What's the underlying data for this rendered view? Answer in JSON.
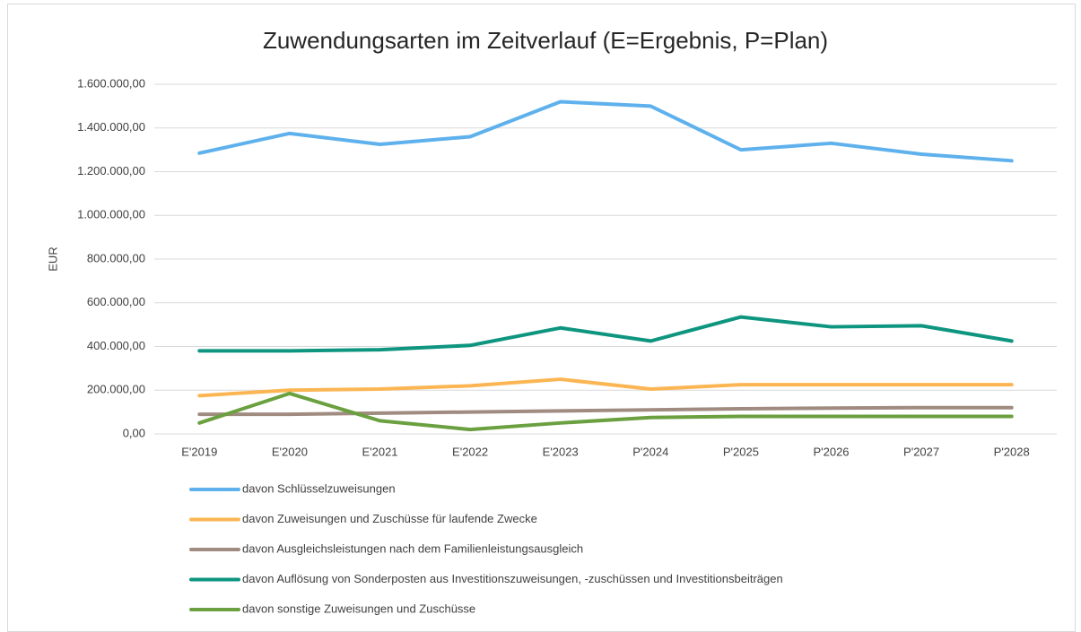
{
  "chart_data": {
    "type": "line",
    "title": "Zuwendungsarten im Zeitverlauf (E=Ergebnis, P=Plan)",
    "y_label": "EUR",
    "categories": [
      "E'2019",
      "E'2020",
      "E'2021",
      "E'2022",
      "E'2023",
      "P'2024",
      "P'2025",
      "P'2026",
      "P'2027",
      "P'2028"
    ],
    "series": [
      {
        "name": "davon Schlüsselzuweisungen",
        "color": "#5eb1ec",
        "values": [
          1285000,
          1375000,
          1325000,
          1360000,
          1520000,
          1500000,
          1300000,
          1330000,
          1280000,
          1250000
        ]
      },
      {
        "name": "davon Zuweisungen und Zuschüsse für laufende Zwecke",
        "color": "#fbb653",
        "values": [
          175000,
          200000,
          205000,
          220000,
          250000,
          205000,
          225000,
          225000,
          225000,
          225000
        ]
      },
      {
        "name": "davon Ausgleichsleistungen nach dem Familienleistungsausgleich",
        "color": "#a08b80",
        "values": [
          90000,
          90000,
          95000,
          100000,
          105000,
          110000,
          115000,
          118000,
          120000,
          120000
        ]
      },
      {
        "name": "davon Auflösung von Sonderposten aus Investitionszuweisungen, -zuschüssen und Investitionsbeiträgen",
        "color": "#0e9580",
        "values": [
          380000,
          380000,
          385000,
          405000,
          485000,
          425000,
          535000,
          490000,
          495000,
          425000
        ]
      },
      {
        "name": "davon sonstige Zuweisungen und Zuschüsse",
        "color": "#6aa03f",
        "values": [
          50000,
          185000,
          60000,
          20000,
          50000,
          75000,
          80000,
          80000,
          80000,
          80000
        ]
      }
    ],
    "ylim": [
      0,
      1600000
    ],
    "yticks": [
      {
        "value": 0,
        "label": "0,00"
      },
      {
        "value": 200000,
        "label": "200.000,00"
      },
      {
        "value": 400000,
        "label": "400.000,00"
      },
      {
        "value": 600000,
        "label": "600.000,00"
      },
      {
        "value": 800000,
        "label": "800.000,00"
      },
      {
        "value": 1000000,
        "label": "1.000.000,00"
      },
      {
        "value": 1200000,
        "label": "1.200.000,00"
      },
      {
        "value": 1400000,
        "label": "1.400.000,00"
      },
      {
        "value": 1600000,
        "label": "1.600.000,00"
      }
    ],
    "grid": true,
    "legend": "bottom"
  }
}
